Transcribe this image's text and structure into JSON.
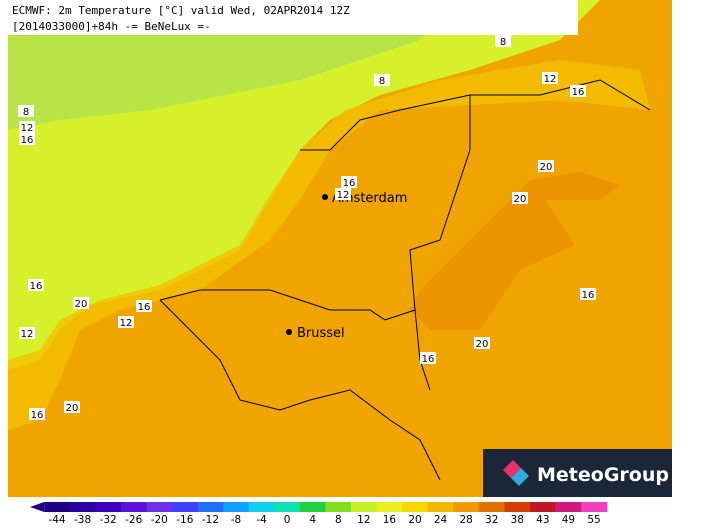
{
  "header": {
    "line1": "ECMWF: 2m Temperature [°C] valid Wed, 02APR2014 12Z",
    "line2": "[2014033000]+84h -= BeNeLux =-"
  },
  "cities": [
    "Amsterdam",
    "Brussel"
  ],
  "contour_labels": [
    "8",
    "8",
    "8",
    "12",
    "16",
    "12",
    "16",
    "20",
    "20",
    "16",
    "12",
    "16",
    "20",
    "16",
    "12",
    "16",
    "20",
    "16",
    "20",
    "12",
    "16"
  ],
  "colorbar": {
    "ticks": [
      -44,
      -38,
      -32,
      -26,
      -20,
      -16,
      -12,
      -8,
      -4,
      0,
      4,
      8,
      12,
      16,
      20,
      24,
      28,
      32,
      38,
      43,
      49,
      55
    ],
    "colors": [
      "#1a0080",
      "#2a00a0",
      "#4000c0",
      "#5a10d8",
      "#7030e8",
      "#4040ff",
      "#2070ff",
      "#10a0ff",
      "#10d0f0",
      "#10e0b0",
      "#20d040",
      "#80e020",
      "#c8f028",
      "#e8f020",
      "#f8d800",
      "#f0b800",
      "#f09a00",
      "#e07000",
      "#d04000",
      "#c01820",
      "#d01880",
      "#f040c0"
    ]
  },
  "logo": "MeteoGroup"
}
